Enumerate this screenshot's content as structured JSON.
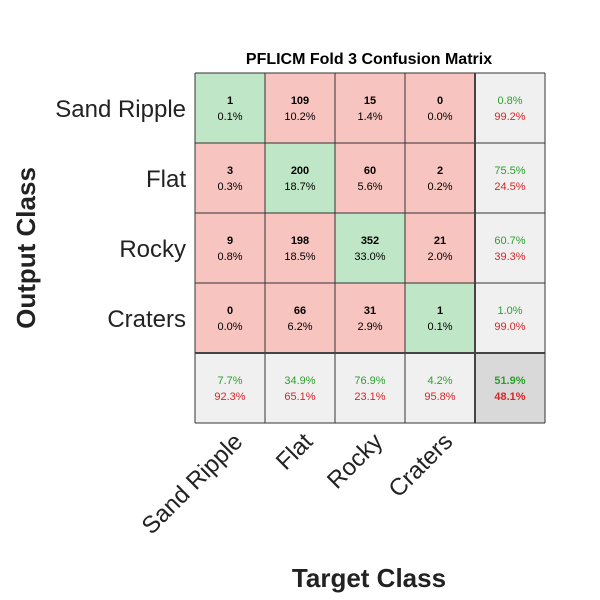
{
  "chart_data": {
    "type": "heatmap",
    "title": "PFLICM Fold 3 Confusion Matrix",
    "xlabel": "Target Class",
    "ylabel": "Output Class",
    "classes": [
      "Sand Ripple",
      "Flat",
      "Rocky",
      "Craters"
    ],
    "counts": [
      [
        1,
        109,
        15,
        0
      ],
      [
        3,
        200,
        60,
        2
      ],
      [
        9,
        198,
        352,
        21
      ],
      [
        0,
        66,
        31,
        1
      ]
    ],
    "cell_percents": [
      [
        "0.1%",
        "10.2%",
        "1.4%",
        "0.0%"
      ],
      [
        "0.3%",
        "18.7%",
        "5.6%",
        "0.2%"
      ],
      [
        "0.8%",
        "18.5%",
        "33.0%",
        "2.0%"
      ],
      [
        "0.0%",
        "6.2%",
        "2.9%",
        "0.1%"
      ]
    ],
    "row_summary": [
      {
        "correct": "0.8%",
        "incorrect": "99.2%"
      },
      {
        "correct": "75.5%",
        "incorrect": "24.5%"
      },
      {
        "correct": "60.7%",
        "incorrect": "39.3%"
      },
      {
        "correct": "1.0%",
        "incorrect": "99.0%"
      }
    ],
    "column_summary": [
      {
        "correct": "7.7%",
        "incorrect": "92.3%"
      },
      {
        "correct": "34.9%",
        "incorrect": "65.1%"
      },
      {
        "correct": "76.9%",
        "incorrect": "23.1%"
      },
      {
        "correct": "4.2%",
        "incorrect": "95.8%"
      }
    ],
    "overall": {
      "correct": "51.9%",
      "incorrect": "48.1%"
    },
    "colors": {
      "diagonal": "#bfe6c6",
      "off_diagonal": "#f8c4c0",
      "summary": "#f0f0f0",
      "overall": "#d9d9d9",
      "correct_text": "#2ca02c",
      "incorrect_text": "#d62728",
      "grid": "#333333"
    }
  }
}
